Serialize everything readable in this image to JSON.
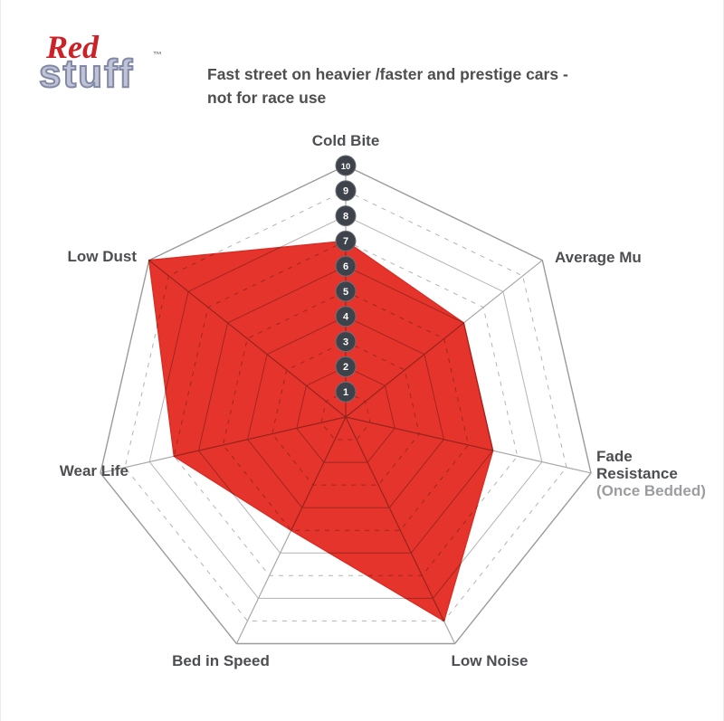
{
  "logo": {
    "brand_red": "Red",
    "brand_stuff": "stuff",
    "trademark": "™",
    "red_color": "#cb2127",
    "stuff_fill": "#bfc3d6"
  },
  "header": {
    "line1": "Fast street on heavier /faster and prestige cars -",
    "line2": "not for race use"
  },
  "labels": {
    "cold_bite": "Cold Bite",
    "average_mu": "Average Mu",
    "fade_line1": "Fade",
    "fade_line2": "Resistance",
    "fade_line3": "(Once Bedded)",
    "low_noise": "Low Noise",
    "bed_in_speed": "Bed in Speed",
    "wear_life": "Wear Life",
    "low_dust": "Low Dust"
  },
  "chart_data": {
    "type": "radar",
    "categories": [
      "Cold Bite",
      "Average Mu",
      "Fade Resistance (Once Bedded)",
      "Low Noise",
      "Bed in Speed",
      "Wear Life",
      "Low Dust"
    ],
    "series": [
      {
        "name": "Redstuff",
        "values": [
          7,
          6,
          6,
          9,
          5,
          7,
          10
        ]
      }
    ],
    "scale": {
      "min": 0,
      "max": 10,
      "ticks": [
        "1",
        "2",
        "3",
        "4",
        "5",
        "6",
        "7",
        "8",
        "9",
        "10"
      ]
    },
    "layout_hints": {
      "axes_order": "clockwise from top",
      "rings": 10,
      "odd_rings_dashed": true,
      "tick_markers_on_top_axis": true
    },
    "style": {
      "series_fill": "#e5342b",
      "series_stroke": "#d92e26",
      "grid_color": "#b3b3b3",
      "outer_ring_color": "#9b9b9b",
      "axis_color": "#a8a8a8",
      "marker_fill": "#3d424b",
      "marker_ring": "#6c7078",
      "marker_text": "#ffffff"
    }
  }
}
